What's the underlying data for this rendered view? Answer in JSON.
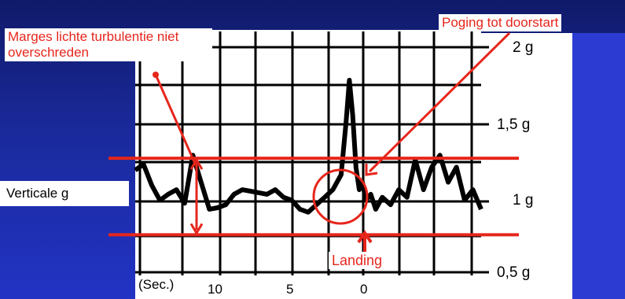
{
  "chart_data": {
    "type": "line",
    "title": "",
    "xlabel": "(Sec.)",
    "ylabel": "Verticale g",
    "x_ticks": [
      "10",
      "5",
      "0"
    ],
    "y_ticks": [
      "2 g",
      "1,5 g",
      "1 g",
      "0,5 g"
    ],
    "ylim": [
      0.5,
      2.1
    ],
    "xlim": [
      14,
      -7
    ],
    "grid": true,
    "series": [
      {
        "name": "",
        "x": [
          14,
          13.5,
          13,
          12.5,
          12,
          11.5,
          11,
          10.5,
          10,
          9.5,
          9,
          8.5,
          8,
          7.5,
          7,
          6.5,
          6,
          5.5,
          5,
          4.5,
          4,
          3.5,
          3,
          2.5,
          2,
          1.5,
          1.2,
          1,
          0.8,
          0.6,
          0.4,
          0.2,
          0,
          -0.3,
          -0.6,
          -1,
          -1.5,
          -2,
          -2.5,
          -3,
          -3.5,
          -4,
          -4.5,
          -5,
          -5.5,
          -6,
          -6.5,
          -7
        ],
        "y": [
          1.18,
          1.22,
          1.08,
          0.98,
          1.02,
          1.05,
          0.96,
          1.28,
          1.1,
          0.92,
          0.93,
          0.95,
          1.02,
          1.05,
          1.04,
          1.03,
          1.02,
          1.05,
          1.0,
          0.98,
          0.92,
          0.9,
          0.95,
          1.0,
          1.05,
          1.15,
          1.5,
          1.78,
          1.55,
          1.2,
          1.05,
          1.1,
          0.98,
          1.02,
          0.92,
          1.0,
          0.95,
          1.05,
          1.0,
          1.25,
          1.05,
          1.2,
          1.28,
          1.1,
          1.2,
          0.98,
          1.05,
          0.92
        ]
      }
    ],
    "annotations": {
      "bounds": [
        0.75,
        1.26
      ],
      "colors": {
        "annotation": "#e6261c",
        "trace": "#000000"
      }
    }
  },
  "labels": {
    "margins": "Marges lichte turbulentie niet overschreden",
    "goaround": "Poging tot doorstart",
    "landing": "Landing",
    "vertical": "Verticale g",
    "sec": "(Sec.)"
  }
}
